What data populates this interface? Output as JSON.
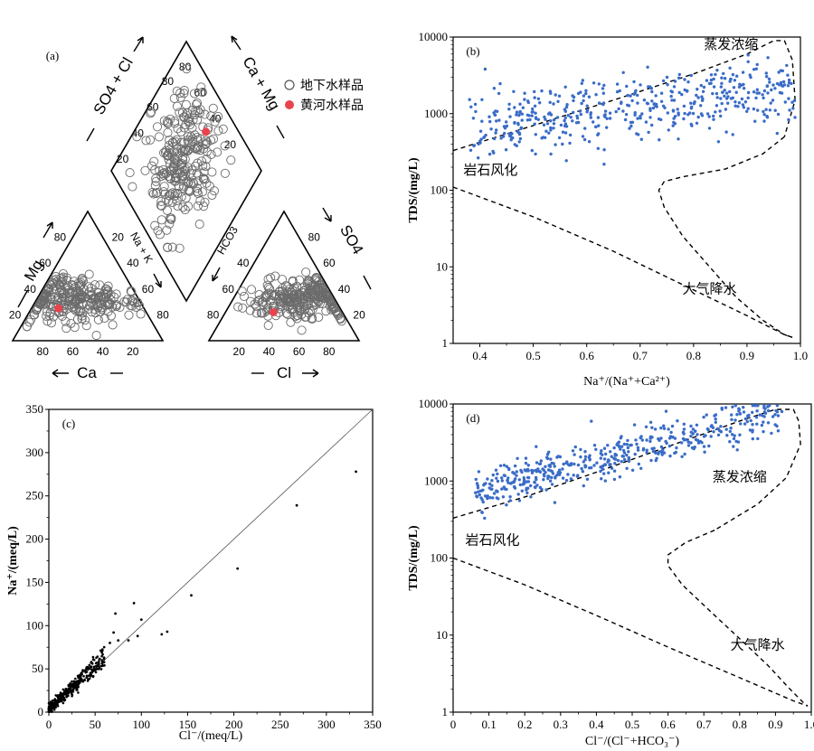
{
  "chart_data": [
    {
      "panel": "(a)",
      "type": "scatter",
      "subtype": "piper-diagram",
      "legend": [
        {
          "label": "地下水样品",
          "marker": "open-circle",
          "color": "#555555"
        },
        {
          "label": "黄河水样品",
          "marker": "filled-circle",
          "color": "#e8444e"
        }
      ],
      "legend_position": "top-right",
      "axis_labels": {
        "mg": "Mg",
        "ca": "Ca",
        "na_k": "Na + K",
        "hco3": "HCO3",
        "so4": "SO4",
        "cl": "Cl",
        "so4_cl": "SO4 + Cl",
        "ca_mg": "Ca + Mg"
      },
      "ticks": [
        "20",
        "40",
        "60",
        "80"
      ],
      "yellow_river_sample": {
        "cation": {
          "Ca": 57,
          "Mg": 25
        },
        "anion": {
          "Cl": 32,
          "SO4": 22
        },
        "diamond": {
          "so4_cl": 52,
          "ca_mg": 78
        }
      },
      "groundwater_cluster": {
        "cation": {
          "Ca": [
            42,
            18
          ],
          "Mg": [
            32,
            9
          ]
        },
        "anion": {
          "Cl": [
            44,
            15
          ],
          "SO4": [
            34,
            9
          ]
        },
        "diamond": {
          "so4_cl": [
            58,
            16
          ],
          "ca_mg": [
            52,
            16
          ]
        }
      }
    },
    {
      "panel": "(b)",
      "type": "scatter",
      "xlabel": "Na⁺/(Na⁺+Ca²⁺)",
      "ylabel": "TDS/(mg/L)",
      "xlim": [
        0.35,
        1.0
      ],
      "ylim": [
        1,
        10000
      ],
      "yscale": "log",
      "xticks": [
        "0.4",
        "0.5",
        "0.6",
        "0.7",
        "0.8",
        "0.9",
        "1.0"
      ],
      "yticks": [
        "1",
        "10",
        "100",
        "1000",
        "10000"
      ],
      "marker_color": "#3a6cc7",
      "annotations": [
        "蒸发浓缩",
        "岩石风化",
        "大气降水"
      ],
      "points_summary": {
        "n": 480,
        "x_range": [
          0.38,
          0.99
        ],
        "trend_log10_tds": [
          2.8,
          3.35
        ],
        "log_spread": 0.22
      }
    },
    {
      "panel": "(c)",
      "type": "scatter",
      "xlabel": "Cl⁻/(meq/L)",
      "ylabel": "Na⁺/(meq/L)",
      "xlim": [
        0,
        350
      ],
      "ylim": [
        0,
        350
      ],
      "xticks": [
        "0",
        "50",
        "100",
        "150",
        "200",
        "250",
        "300",
        "350"
      ],
      "yticks": [
        "0",
        "50",
        "100",
        "150",
        "200",
        "250",
        "300",
        "350"
      ],
      "reference_line": "1:1",
      "marker_color": "#000000",
      "outliers": [
        {
          "x": 332,
          "y": 278
        },
        {
          "x": 268,
          "y": 239
        },
        {
          "x": 204,
          "y": 166
        },
        {
          "x": 154,
          "y": 135
        },
        {
          "x": 128,
          "y": 93
        },
        {
          "x": 122,
          "y": 90
        },
        {
          "x": 100,
          "y": 107
        },
        {
          "x": 92,
          "y": 126
        },
        {
          "x": 96,
          "y": 88
        },
        {
          "x": 72,
          "y": 114
        },
        {
          "x": 70,
          "y": 92
        },
        {
          "x": 75,
          "y": 83
        },
        {
          "x": 86,
          "y": 83
        },
        {
          "x": 66,
          "y": 80
        },
        {
          "x": 60,
          "y": 54
        }
      ],
      "points_summary": {
        "n": 420,
        "cluster_x_range": [
          0,
          60
        ]
      }
    },
    {
      "panel": "(d)",
      "type": "scatter",
      "xlabel": "Cl⁻/(Cl⁻+HCO₃⁻)",
      "ylabel": "TDS/(mg/L)",
      "xlim": [
        0,
        1.0
      ],
      "ylim": [
        1,
        10000
      ],
      "yscale": "log",
      "xticks": [
        "0",
        "0.1",
        "0.2",
        "0.3",
        "0.4",
        "0.5",
        "0.6",
        "0.7",
        "0.8",
        "0.9",
        "1.0"
      ],
      "yticks": [
        "1",
        "10",
        "100",
        "1000",
        "10000"
      ],
      "marker_color": "#3a6cc7",
      "annotations": [
        "蒸发浓缩",
        "岩石风化",
        "大气降水"
      ],
      "points_summary": {
        "n": 480,
        "x_range": [
          0.06,
          0.92
        ],
        "trend_log10_tds_at_x0": 2.78,
        "trend_slope": 1.22,
        "log_spread": 0.14
      }
    }
  ]
}
